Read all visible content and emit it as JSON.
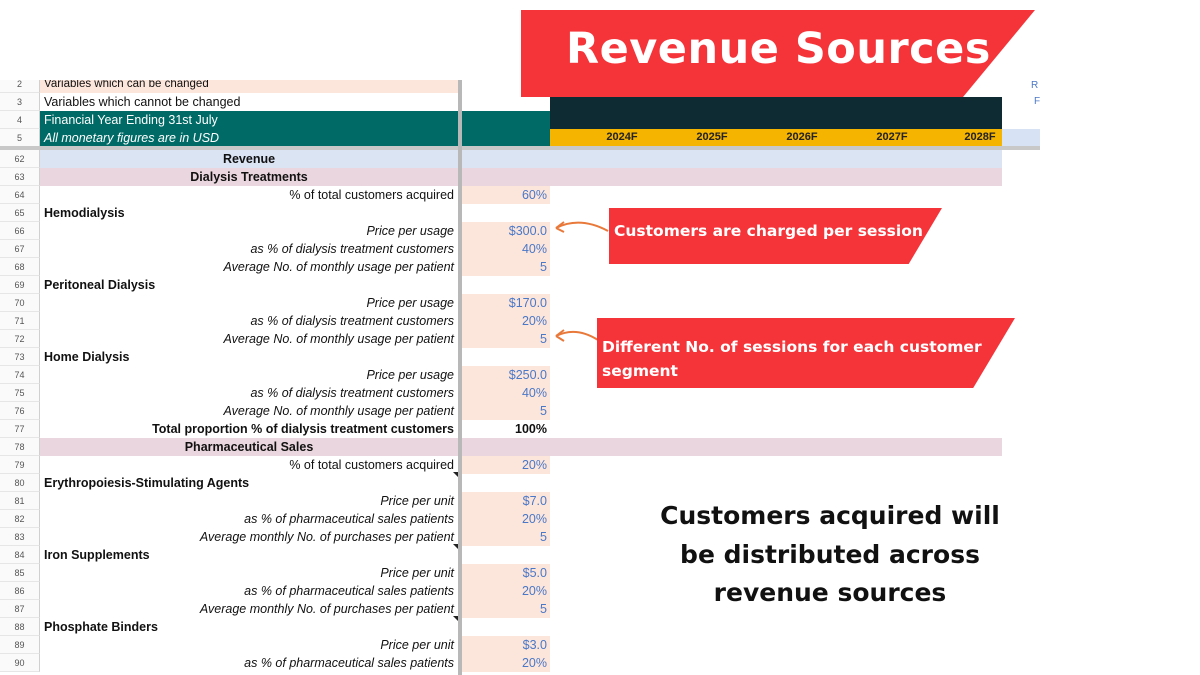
{
  "banner": {
    "title": "Revenue Sources"
  },
  "header_rows": [
    {
      "num": "2",
      "text": "Variables which can be changed"
    },
    {
      "num": "3",
      "text": "Variables which cannot be changed"
    },
    {
      "num": "4",
      "text": "Financial Year Ending 31st July"
    },
    {
      "num": "5",
      "text": "All monetary figures are in USD"
    }
  ],
  "years": [
    "2024F",
    "2025F",
    "2026F",
    "2027F",
    "2028F"
  ],
  "side_letters": [
    "R",
    "F"
  ],
  "rows": [
    {
      "num": "62",
      "label": "Revenue",
      "value": ""
    },
    {
      "num": "63",
      "label": "Dialysis Treatments",
      "value": ""
    },
    {
      "num": "64",
      "label": "% of total customers acquired",
      "value": "60%"
    },
    {
      "num": "65",
      "label": "Hemodialysis",
      "value": ""
    },
    {
      "num": "66",
      "label": "Price per usage",
      "value": "$300.0"
    },
    {
      "num": "67",
      "label": "as % of dialysis treatment customers",
      "value": "40%"
    },
    {
      "num": "68",
      "label": "Average No. of monthly usage per patient",
      "value": "5"
    },
    {
      "num": "69",
      "label": "Peritoneal Dialysis",
      "value": ""
    },
    {
      "num": "70",
      "label": "Price per usage",
      "value": "$170.0"
    },
    {
      "num": "71",
      "label": "as % of dialysis treatment customers",
      "value": "20%"
    },
    {
      "num": "72",
      "label": "Average No. of monthly usage per patient",
      "value": "5"
    },
    {
      "num": "73",
      "label": "Home Dialysis",
      "value": ""
    },
    {
      "num": "74",
      "label": "Price per usage",
      "value": "$250.0"
    },
    {
      "num": "75",
      "label": "as % of dialysis treatment customers",
      "value": "40%"
    },
    {
      "num": "76",
      "label": "Average No. of monthly usage per patient",
      "value": "5"
    },
    {
      "num": "77",
      "label": "Total proportion % of dialysis treatment customers",
      "value": "100%"
    },
    {
      "num": "78",
      "label": "Pharmaceutical Sales",
      "value": ""
    },
    {
      "num": "79",
      "label": "% of total customers acquired",
      "value": "20%"
    },
    {
      "num": "80",
      "label": "Erythropoiesis-Stimulating Agents",
      "value": ""
    },
    {
      "num": "81",
      "label": "Price per unit",
      "value": "$7.0"
    },
    {
      "num": "82",
      "label": "as % of pharmaceutical sales patients",
      "value": "20%"
    },
    {
      "num": "83",
      "label": "Average monthly No. of purchases per patient",
      "value": "5"
    },
    {
      "num": "84",
      "label": "Iron Supplements",
      "value": ""
    },
    {
      "num": "85",
      "label": "Price per unit",
      "value": "$5.0"
    },
    {
      "num": "86",
      "label": "as % of pharmaceutical sales patients",
      "value": "20%"
    },
    {
      "num": "87",
      "label": "Average monthly No. of purchases per patient",
      "value": "5"
    },
    {
      "num": "88",
      "label": "Phosphate Binders",
      "value": ""
    },
    {
      "num": "89",
      "label": "Price per unit",
      "value": "$3.0"
    },
    {
      "num": "90",
      "label": "as % of pharmaceutical sales patients",
      "value": "20%"
    }
  ],
  "callouts": {
    "c1": "Customers are charged per session",
    "c2_line1": "Different No. of sessions for each customer",
    "c2_line2": "segment"
  },
  "bottom_note": {
    "line1": "Customers acquired will",
    "line2": "be distributed across",
    "line3": "revenue sources"
  }
}
